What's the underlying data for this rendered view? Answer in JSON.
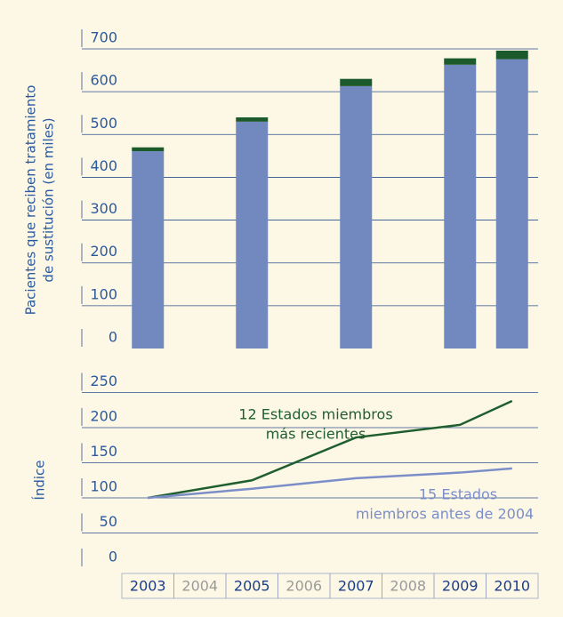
{
  "chart_data": [
    {
      "type": "bar",
      "ylabel": [
        "Pacientes que reciben tratamiento",
        "de sustitución (en miles)"
      ],
      "categories": [
        "2003",
        "2004",
        "2005",
        "2006",
        "2007",
        "2008",
        "2009",
        "2010"
      ],
      "series": [
        {
          "color": "#7189bf",
          "values": [
            461,
            null,
            530,
            null,
            613,
            null,
            663,
            676
          ]
        },
        {
          "color": "#1d5a2b",
          "values": [
            9,
            null,
            10,
            null,
            17,
            null,
            15,
            20
          ]
        }
      ],
      "ylim": [
        0,
        700
      ],
      "yticks": [
        0,
        100,
        200,
        300,
        400,
        500,
        600,
        700
      ],
      "grid": true
    },
    {
      "type": "line",
      "ylabel": [
        "Índice"
      ],
      "x": [
        2003,
        2005,
        2007,
        2009,
        2010
      ],
      "series": [
        {
          "name": [
            "12 Estados miembros",
            "más recientes"
          ],
          "color": "#1f5e2e",
          "values": [
            100,
            125,
            186,
            204,
            238
          ]
        },
        {
          "name": [
            "15 Estados",
            "miembros antes de 2004"
          ],
          "color": "#7b8ec8",
          "values": [
            100,
            113,
            128,
            136,
            142
          ]
        }
      ],
      "ylim": [
        0,
        250
      ],
      "yticks": [
        0,
        50,
        100,
        150,
        200,
        250
      ],
      "grid": true
    }
  ]
}
